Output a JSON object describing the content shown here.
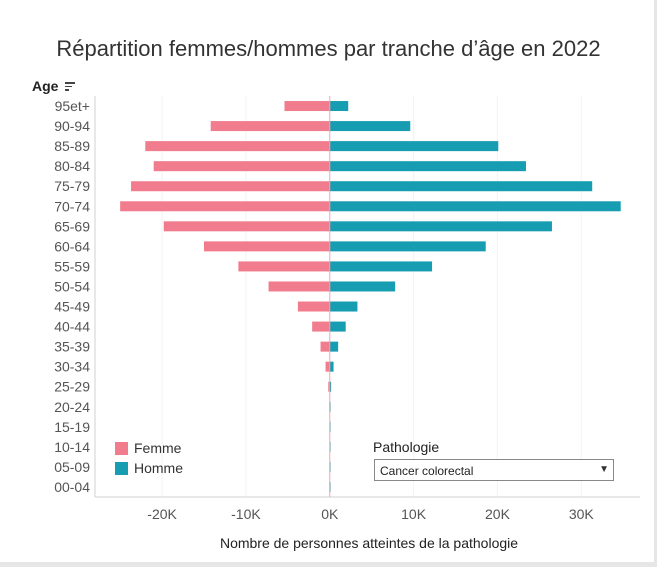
{
  "chart_data": {
    "type": "bar",
    "orientation": "horizontal",
    "title": "Répartition femmes/hommes par tranche d’âge en 2022",
    "xlabel": "Nombre de  personnes atteintes de la pathologie",
    "ylabel": "Age",
    "xlim": [
      -28000,
      37000
    ],
    "xticks": [
      -20000,
      -10000,
      0,
      10000,
      20000,
      30000
    ],
    "xtick_labels": [
      "-20K",
      "-10K",
      "0K",
      "10K",
      "20K",
      "30K"
    ],
    "categories": [
      "95et+",
      "90-94",
      "85-89",
      "80-84",
      "75-79",
      "70-74",
      "65-69",
      "60-64",
      "55-59",
      "50-54",
      "45-49",
      "40-44",
      "35-39",
      "30-34",
      "25-29",
      "20-24",
      "15-19",
      "10-14",
      "05-09",
      "00-04"
    ],
    "series": [
      {
        "name": "Femme",
        "color": "#F07C8D",
        "values": [
          -5400,
          -14200,
          -22000,
          -21000,
          -23700,
          -25000,
          -19800,
          -15000,
          -10900,
          -7300,
          -3800,
          -2100,
          -1100,
          -500,
          -180,
          -70,
          -40,
          -40,
          -50,
          -60
        ]
      },
      {
        "name": "Homme",
        "color": "#179DB1",
        "values": [
          2200,
          9600,
          20100,
          23400,
          31300,
          34700,
          26500,
          18600,
          12200,
          7800,
          3300,
          1900,
          1000,
          450,
          160,
          60,
          35,
          35,
          45,
          55
        ]
      }
    ],
    "legend_position": "bottom-left",
    "grid": false
  },
  "header": {
    "age_label": "Age",
    "sort_icon": "sort-descending-icon"
  },
  "filter": {
    "label": "Pathologie",
    "value": "Cancer colorectal",
    "caret_icon": "caret-down-icon"
  }
}
